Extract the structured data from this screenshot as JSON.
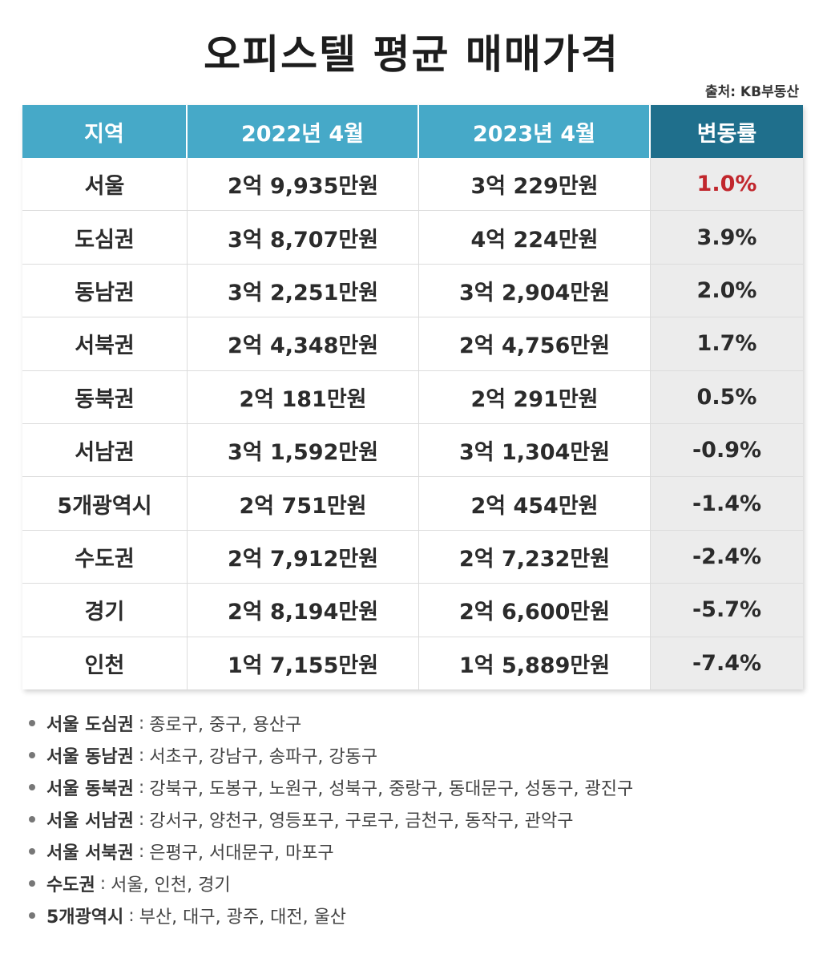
{
  "title": "오피스텔 평균 매매가격",
  "source": "출처: KB부동산",
  "table": {
    "headers": [
      "지역",
      "2022년 4월",
      "2023년 4월",
      "변동률"
    ],
    "rows": [
      {
        "region": "서울",
        "y2022": "2억 9,935만원",
        "y2023": "3억 229만원",
        "change": "1.0%"
      },
      {
        "region": "도심권",
        "y2022": "3억 8,707만원",
        "y2023": "4억 224만원",
        "change": "3.9%"
      },
      {
        "region": "동남권",
        "y2022": "3억 2,251만원",
        "y2023": "3억 2,904만원",
        "change": "2.0%"
      },
      {
        "region": "서북권",
        "y2022": "2억 4,348만원",
        "y2023": "2억 4,756만원",
        "change": "1.7%"
      },
      {
        "region": "동북권",
        "y2022": "2억 181만원",
        "y2023": "2억 291만원",
        "change": "0.5%"
      },
      {
        "region": "서남권",
        "y2022": "3억 1,592만원",
        "y2023": "3억 1,304만원",
        "change": "-0.9%"
      },
      {
        "region": "5개광역시",
        "y2022": "2억 751만원",
        "y2023": "2억 454만원",
        "change": "-1.4%"
      },
      {
        "region": "수도권",
        "y2022": "2억 7,912만원",
        "y2023": "2억 7,232만원",
        "change": "-2.4%"
      },
      {
        "region": "경기",
        "y2022": "2억 8,194만원",
        "y2023": "2억 6,600만원",
        "change": "-5.7%"
      },
      {
        "region": "인천",
        "y2022": "1억 7,155만원",
        "y2023": "1억 5,889만원",
        "change": "-7.4%"
      }
    ],
    "highlight_color": "#c1272d"
  },
  "notes": [
    {
      "label": "서울 도심권",
      "text": "종로구, 중구, 용산구"
    },
    {
      "label": "서울 동남권",
      "text": "서초구, 강남구, 송파구, 강동구"
    },
    {
      "label": "서울 동북권",
      "text": "강북구, 도봉구, 노원구, 성북구, 중랑구, 동대문구, 성동구, 광진구"
    },
    {
      "label": "서울 서남권",
      "text": "강서구, 양천구, 영등포구, 구로구, 금천구, 동작구, 관악구"
    },
    {
      "label": "서울 서북권",
      "text": "은평구, 서대문구, 마포구"
    },
    {
      "label": "수도권",
      "text": "서울, 인천, 경기"
    },
    {
      "label": "5개광역시",
      "text": "부산, 대구, 광주, 대전, 울산"
    }
  ],
  "note_separator": ":"
}
